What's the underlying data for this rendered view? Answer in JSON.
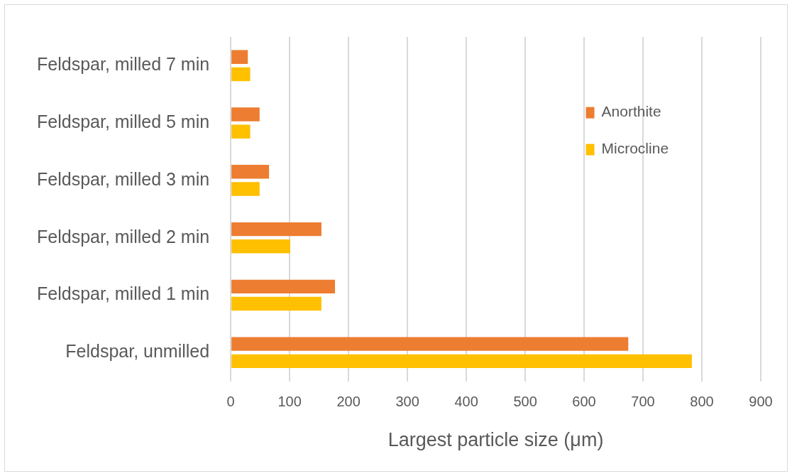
{
  "chart_data": {
    "type": "bar",
    "orientation": "horizontal",
    "xlabel": "Largest particle size (μm)",
    "categories": [
      "Feldspar, milled 7 min",
      "Feldspar, milled 5 min",
      "Feldspar, milled 3 min",
      "Feldspar, milled 2 min",
      "Feldspar, milled 1 min",
      "Feldspar, unmilled"
    ],
    "series": [
      {
        "name": "Anorthite",
        "color": "#ed7d31",
        "values": [
          29,
          49,
          65,
          154,
          177,
          675
        ]
      },
      {
        "name": "Microcline",
        "color": "#ffc000",
        "values": [
          33,
          33,
          49,
          101,
          154,
          783
        ]
      }
    ],
    "xlim": [
      0,
      900
    ],
    "xticks": [
      0,
      100,
      200,
      300,
      400,
      500,
      600,
      700,
      800,
      900
    ],
    "grid": "x",
    "legend": "right"
  }
}
